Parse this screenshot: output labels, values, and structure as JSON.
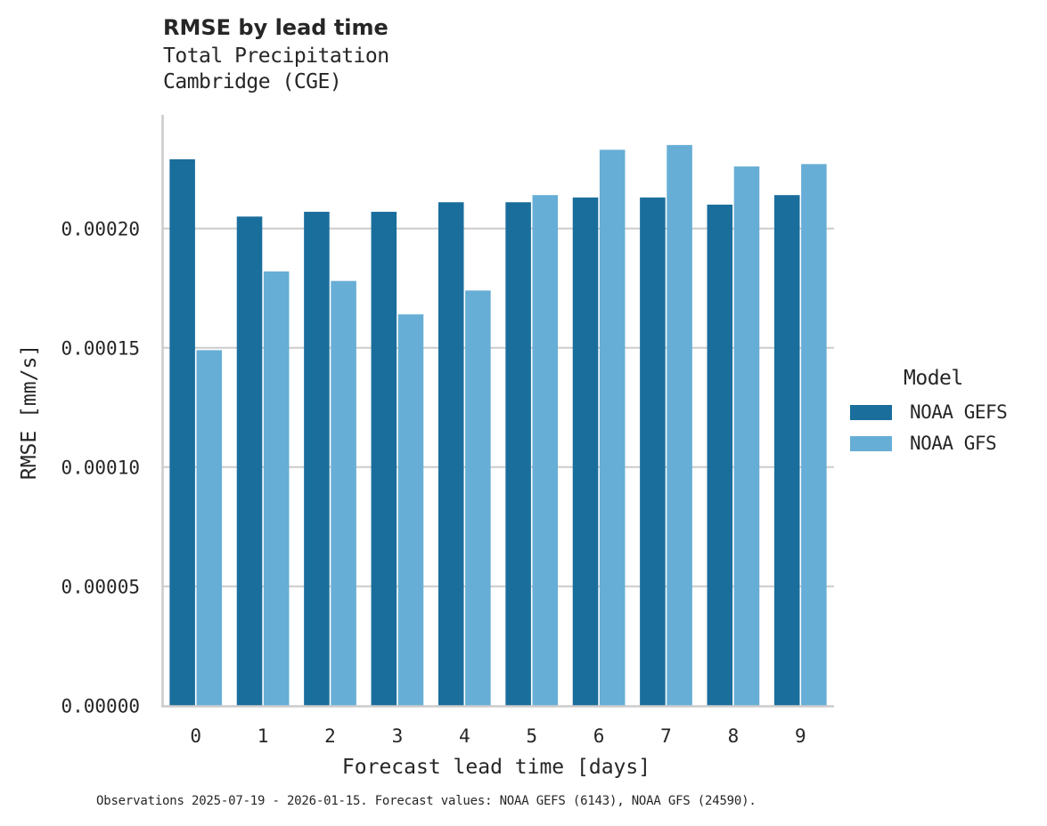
{
  "header": {
    "title": "RMSE by lead time",
    "subtitle_line1": "Total Precipitation",
    "subtitle_line2": "Cambridge (CGE)"
  },
  "legend": {
    "title": "Model",
    "items": [
      {
        "label": "NOAA GEFS",
        "color": "#1a6e9c"
      },
      {
        "label": "NOAA GFS",
        "color": "#67aed6"
      }
    ]
  },
  "caption": "Observations 2025-07-19 - 2026-01-15. Forecast values: NOAA GEFS (6143), NOAA GFS (24590).",
  "colors": {
    "gefs": "#1a6e9c",
    "gfs": "#67aed6",
    "grid": "#cccccc",
    "axis": "#cccccc",
    "text": "#262626"
  },
  "chart_data": {
    "type": "bar",
    "title": "RMSE by lead time",
    "subtitle": "Total Precipitation / Cambridge (CGE)",
    "xlabel": "Forecast lead time [days]",
    "ylabel": "RMSE [mm/s]",
    "categories": [
      "0",
      "1",
      "2",
      "3",
      "4",
      "5",
      "6",
      "7",
      "8",
      "9"
    ],
    "series": [
      {
        "name": "NOAA GEFS",
        "color": "#1a6e9c",
        "values": [
          0.000229,
          0.000205,
          0.000207,
          0.000207,
          0.000211,
          0.000211,
          0.000213,
          0.000213,
          0.00021,
          0.000214
        ]
      },
      {
        "name": "NOAA GFS",
        "color": "#67aed6",
        "values": [
          0.000149,
          0.000182,
          0.000178,
          0.000164,
          0.000174,
          0.000214,
          0.000233,
          0.000235,
          0.000226,
          0.000227
        ]
      }
    ],
    "yticks": [
      "0.00000",
      "0.00005",
      "0.00010",
      "0.00015",
      "0.00020"
    ],
    "ytick_values": [
      0,
      5e-05,
      0.0001,
      0.00015,
      0.0002
    ],
    "ylim": [
      0,
      0.000248
    ],
    "grid": "horizontal",
    "legend_title": "Model",
    "legend_position": "right"
  }
}
